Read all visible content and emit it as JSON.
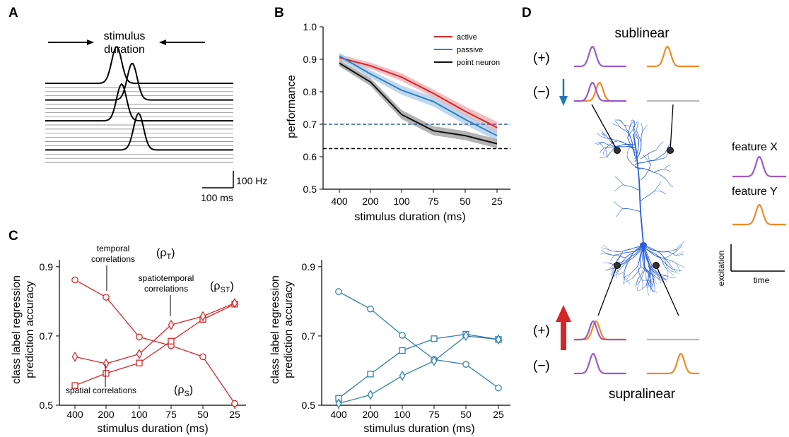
{
  "panels": {
    "a": "A",
    "b": "B",
    "c": "C",
    "d": "D"
  },
  "panel_a": {
    "title_line1": "stimulus",
    "title_line2": "duration",
    "scale_rate": "100 Hz",
    "scale_time": "100 ms"
  },
  "panel_d": {
    "sublinear": "sublinear",
    "supralinear": "supralinear",
    "plus": "(+)",
    "minus": "(−)",
    "feature_x": "feature X",
    "feature_y": "feature Y",
    "excitation": "excitation",
    "time": "time",
    "colors": {
      "feature_x": "#9b59c8",
      "feature_y": "#f08a24",
      "null": "#bbbbbb",
      "down_arrow": "#1f77b4",
      "up_arrow": "#d62728",
      "morphology": "#2b5fd9"
    }
  },
  "chart_data": [
    {
      "id": "B",
      "type": "line",
      "categories": [
        "400",
        "200",
        "100",
        "75",
        "50",
        "25"
      ],
      "xlabel": "stimulus duration (ms)",
      "ylabel": "performance",
      "ylim": [
        0.5,
        1.0
      ],
      "yticks": [
        "0.5",
        "0.6",
        "0.7",
        "0.8",
        "0.9",
        "1.0"
      ],
      "legend_position": "top-right",
      "series": [
        {
          "name": "active",
          "color": "#d62728",
          "band": "#f2a9ad",
          "values": [
            0.905,
            0.88,
            0.845,
            0.795,
            0.74,
            0.69
          ],
          "err": [
            0.01,
            0.01,
            0.012,
            0.012,
            0.015,
            0.018
          ]
        },
        {
          "name": "passive",
          "color": "#2f7fc1",
          "band": "#a9cbea",
          "values": [
            0.91,
            0.855,
            0.805,
            0.77,
            0.715,
            0.665
          ],
          "err": [
            0.01,
            0.012,
            0.014,
            0.015,
            0.016,
            0.016
          ]
        },
        {
          "name": "point neuron",
          "color": "#111111",
          "band": "#9a9a9a",
          "values": [
            0.888,
            0.83,
            0.73,
            0.68,
            0.665,
            0.64
          ],
          "err": [
            0.01,
            0.012,
            0.014,
            0.014,
            0.014,
            0.014
          ]
        }
      ],
      "hlines": [
        {
          "value": 0.7,
          "color": "#2f5fa8"
        },
        {
          "value": 0.625,
          "color": "#000000"
        }
      ]
    },
    {
      "id": "C-left",
      "type": "line",
      "categories": [
        "400",
        "200",
        "100",
        "75",
        "50",
        "25"
      ],
      "xlabel": "stimulus duration (ms)",
      "ylabel_line1": "class label regression",
      "ylabel_line2": "prediction accuracy",
      "ylim": [
        0.5,
        0.92
      ],
      "yticks": [
        "0.5",
        "0.7",
        "0.9"
      ],
      "color": "#d62728",
      "series": [
        {
          "name": "temporal correlations",
          "marker": "circle",
          "values": [
            0.862,
            0.812,
            0.697,
            0.672,
            0.64,
            0.505
          ]
        },
        {
          "name": "spatial correlations",
          "marker": "square",
          "values": [
            0.557,
            0.592,
            0.622,
            0.685,
            0.748,
            0.792
          ]
        },
        {
          "name": "spatiotemporal correlations",
          "marker": "diamond",
          "values": [
            0.64,
            0.62,
            0.648,
            0.732,
            0.757,
            0.795
          ]
        }
      ],
      "annotations": {
        "temporal_line1": "temporal",
        "temporal_line2": "correlations",
        "temporal_sym": "(ρ",
        "temporal_sub": "T",
        "spatio_line1": "spatiotemporal",
        "spatio_line2": "correlations",
        "spatio_sym": "(ρ",
        "spatio_sub": "ST",
        "spatial_text": "spatial correlations",
        "spatial_sym": "(ρ",
        "spatial_sub": "S",
        "close": ")"
      }
    },
    {
      "id": "C-right",
      "type": "line",
      "categories": [
        "400",
        "200",
        "100",
        "75",
        "50",
        "25"
      ],
      "xlabel": "stimulus duration (ms)",
      "ylabel_line1": "class label regression",
      "ylabel_line2": "prediction accuracy",
      "ylim": [
        0.5,
        0.92
      ],
      "yticks": [
        "0.5",
        "0.7",
        "0.9"
      ],
      "color": "#2f7fb1",
      "series": [
        {
          "name": "temporal correlations",
          "marker": "circle",
          "values": [
            0.828,
            0.778,
            0.702,
            0.632,
            0.618,
            0.55
          ]
        },
        {
          "name": "spatial correlations",
          "marker": "square",
          "values": [
            0.52,
            0.59,
            0.658,
            0.692,
            0.705,
            0.69
          ]
        },
        {
          "name": "spatiotemporal correlations",
          "marker": "diamond",
          "values": [
            0.505,
            0.53,
            0.585,
            0.628,
            0.7,
            0.69
          ]
        }
      ]
    }
  ]
}
